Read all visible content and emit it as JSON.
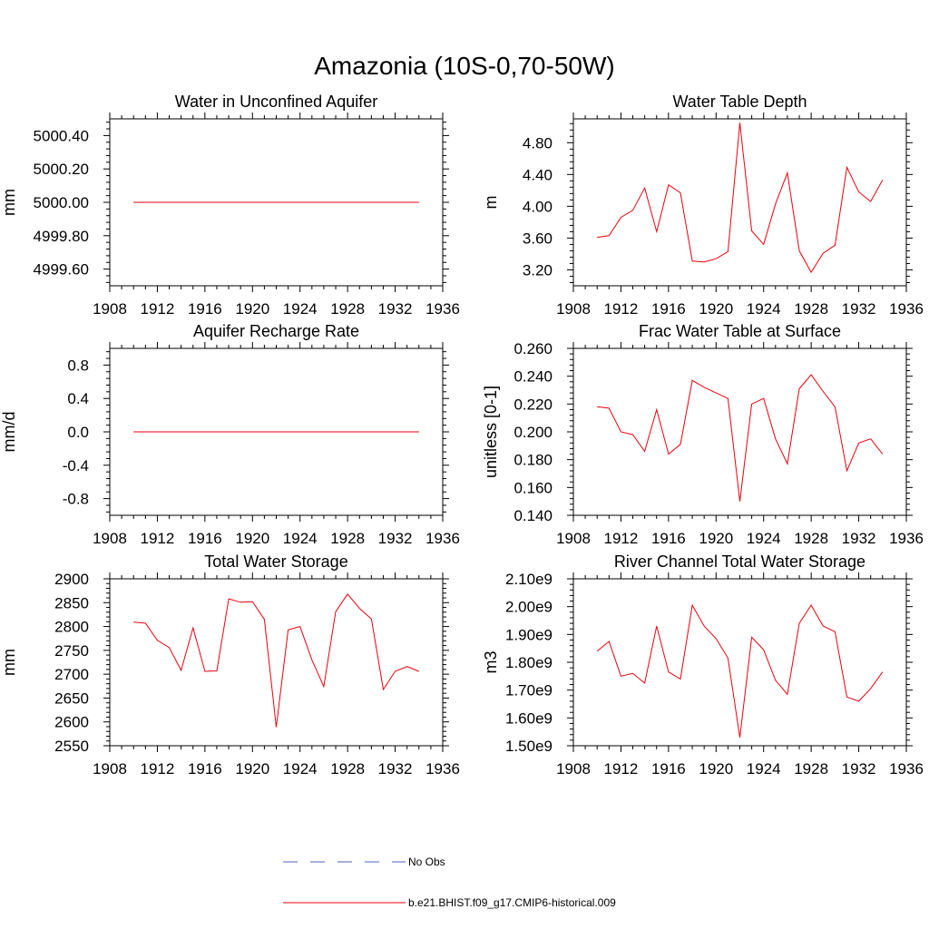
{
  "figure": {
    "title": "Amazonia (10S-0,70-50W)"
  },
  "legend": {
    "entries": [
      {
        "label": "No Obs",
        "style": "dashed",
        "color": "#5060b8"
      },
      {
        "label": "b.e21.BHIST.f09_g17.CMIP6-historical.009",
        "style": "solid",
        "color": "#e8000b"
      }
    ]
  },
  "colors": {
    "series": "#e8000b",
    "axis": "#000000"
  },
  "chart_data": [
    {
      "type": "line",
      "title": "Water in Unconfined Aquifer",
      "ylabel": "mm",
      "xlim": [
        1908,
        1936
      ],
      "ylim": [
        4999.5,
        5000.5
      ],
      "xticks": [
        1908,
        1912,
        1916,
        1920,
        1924,
        1928,
        1932,
        1936
      ],
      "yticks": [
        4999.6,
        4999.8,
        5000.0,
        5000.2,
        5000.4
      ],
      "ytick_labels": [
        "4999.60",
        "4999.80",
        "5000.00",
        "5000.20",
        "5000.40"
      ],
      "x": [
        1910,
        1911,
        1912,
        1913,
        1914,
        1915,
        1916,
        1917,
        1918,
        1919,
        1920,
        1921,
        1922,
        1923,
        1924,
        1925,
        1926,
        1927,
        1928,
        1929,
        1930,
        1931,
        1932,
        1933,
        1934
      ],
      "series": [
        {
          "name": "b.e21.BHIST.f09_g17.CMIP6-historical.009",
          "values": [
            5000,
            5000,
            5000,
            5000,
            5000,
            5000,
            5000,
            5000,
            5000,
            5000,
            5000,
            5000,
            5000,
            5000,
            5000,
            5000,
            5000,
            5000,
            5000,
            5000,
            5000,
            5000,
            5000,
            5000,
            5000
          ]
        }
      ]
    },
    {
      "type": "line",
      "title": "Water Table Depth",
      "ylabel": "m",
      "xlim": [
        1908,
        1936
      ],
      "ylim": [
        3.0,
        5.1
      ],
      "xticks": [
        1908,
        1912,
        1916,
        1920,
        1924,
        1928,
        1932,
        1936
      ],
      "yticks": [
        3.2,
        3.6,
        4.0,
        4.4,
        4.8
      ],
      "ytick_labels": [
        "3.20",
        "3.60",
        "4.00",
        "4.40",
        "4.80"
      ],
      "x": [
        1910,
        1911,
        1912,
        1913,
        1914,
        1915,
        1916,
        1917,
        1918,
        1919,
        1920,
        1921,
        1922,
        1923,
        1924,
        1925,
        1926,
        1927,
        1928,
        1929,
        1930,
        1931,
        1932,
        1933,
        1934
      ],
      "series": [
        {
          "name": "b.e21.BHIST.f09_g17.CMIP6-historical.009",
          "values": [
            3.61,
            3.63,
            3.86,
            3.95,
            4.23,
            3.68,
            4.27,
            4.17,
            3.31,
            3.3,
            3.34,
            3.43,
            5.05,
            3.69,
            3.52,
            4.03,
            4.42,
            3.44,
            3.17,
            3.41,
            3.51,
            4.49,
            4.18,
            4.06,
            4.33
          ]
        }
      ]
    },
    {
      "type": "line",
      "title": "Aquifer Recharge Rate",
      "ylabel": "mm/d",
      "xlim": [
        1908,
        1936
      ],
      "ylim": [
        -1.0,
        1.0
      ],
      "xticks": [
        1908,
        1912,
        1916,
        1920,
        1924,
        1928,
        1932,
        1936
      ],
      "yticks": [
        -0.8,
        -0.4,
        0.0,
        0.4,
        0.8
      ],
      "ytick_labels": [
        "-0.8",
        "-0.4",
        "0.0",
        "0.4",
        "0.8"
      ],
      "x": [
        1910,
        1911,
        1912,
        1913,
        1914,
        1915,
        1916,
        1917,
        1918,
        1919,
        1920,
        1921,
        1922,
        1923,
        1924,
        1925,
        1926,
        1927,
        1928,
        1929,
        1930,
        1931,
        1932,
        1933,
        1934
      ],
      "series": [
        {
          "name": "b.e21.BHIST.f09_g17.CMIP6-historical.009",
          "values": [
            0,
            0,
            0,
            0,
            0,
            0,
            0,
            0,
            0,
            0,
            0,
            0,
            0,
            0,
            0,
            0,
            0,
            0,
            0,
            0,
            0,
            0,
            0,
            0,
            0
          ]
        }
      ]
    },
    {
      "type": "line",
      "title": "Frac Water Table at Surface",
      "ylabel": "unitless [0-1]",
      "xlim": [
        1908,
        1936
      ],
      "ylim": [
        0.14,
        0.26
      ],
      "xticks": [
        1908,
        1912,
        1916,
        1920,
        1924,
        1928,
        1932,
        1936
      ],
      "yticks": [
        0.14,
        0.16,
        0.18,
        0.2,
        0.22,
        0.24,
        0.26
      ],
      "ytick_labels": [
        "0.140",
        "0.160",
        "0.180",
        "0.200",
        "0.220",
        "0.240",
        "0.260"
      ],
      "x": [
        1910,
        1911,
        1912,
        1913,
        1914,
        1915,
        1916,
        1917,
        1918,
        1919,
        1920,
        1921,
        1922,
        1923,
        1924,
        1925,
        1926,
        1927,
        1928,
        1929,
        1930,
        1931,
        1932,
        1933,
        1934
      ],
      "series": [
        {
          "name": "b.e21.BHIST.f09_g17.CMIP6-historical.009",
          "values": [
            0.218,
            0.217,
            0.2,
            0.198,
            0.186,
            0.216,
            0.184,
            0.191,
            0.237,
            0.232,
            0.228,
            0.224,
            0.15,
            0.22,
            0.224,
            0.195,
            0.177,
            0.231,
            0.241,
            0.229,
            0.218,
            0.172,
            0.192,
            0.195,
            0.184
          ]
        }
      ]
    },
    {
      "type": "line",
      "title": "Total Water Storage",
      "ylabel": "mm",
      "xlim": [
        1908,
        1936
      ],
      "ylim": [
        2550,
        2900
      ],
      "xticks": [
        1908,
        1912,
        1916,
        1920,
        1924,
        1928,
        1932,
        1936
      ],
      "yticks": [
        2550,
        2600,
        2650,
        2700,
        2750,
        2800,
        2850,
        2900
      ],
      "ytick_labels": [
        "2550",
        "2600",
        "2650",
        "2700",
        "2750",
        "2800",
        "2850",
        "2900"
      ],
      "x": [
        1910,
        1911,
        1912,
        1913,
        1914,
        1915,
        1916,
        1917,
        1918,
        1919,
        1920,
        1921,
        1922,
        1923,
        1924,
        1925,
        1926,
        1927,
        1928,
        1929,
        1930,
        1931,
        1932,
        1933,
        1934
      ],
      "series": [
        {
          "name": "b.e21.BHIST.f09_g17.CMIP6-historical.009",
          "values": [
            2809,
            2807,
            2771,
            2756,
            2708,
            2797,
            2706,
            2707,
            2858,
            2851,
            2852,
            2815,
            2589,
            2793,
            2800,
            2730,
            2674,
            2831,
            2868,
            2838,
            2816,
            2668,
            2706,
            2716,
            2706
          ]
        }
      ]
    },
    {
      "type": "line",
      "title": "River Channel Total Water Storage",
      "ylabel": "m3",
      "xlim": [
        1908,
        1936
      ],
      "ylim": [
        1500000000.0,
        2100000000.0
      ],
      "xticks": [
        1908,
        1912,
        1916,
        1920,
        1924,
        1928,
        1932,
        1936
      ],
      "yticks": [
        1500000000.0,
        1600000000.0,
        1700000000.0,
        1800000000.0,
        1900000000.0,
        2000000000.0,
        2100000000.0
      ],
      "ytick_labels": [
        "1.50e9",
        "1.60e9",
        "1.70e9",
        "1.80e9",
        "1.90e9",
        "2.00e9",
        "2.10e9"
      ],
      "x": [
        1910,
        1911,
        1912,
        1913,
        1914,
        1915,
        1916,
        1917,
        1918,
        1919,
        1920,
        1921,
        1922,
        1923,
        1924,
        1925,
        1926,
        1927,
        1928,
        1929,
        1930,
        1931,
        1932,
        1933,
        1934
      ],
      "series": [
        {
          "name": "b.e21.BHIST.f09_g17.CMIP6-historical.009",
          "values": [
            1840000000.0,
            1875000000.0,
            1750000000.0,
            1760000000.0,
            1725000000.0,
            1930000000.0,
            1765000000.0,
            1740000000.0,
            2005000000.0,
            1930000000.0,
            1885000000.0,
            1815000000.0,
            1530000000.0,
            1890000000.0,
            1845000000.0,
            1735000000.0,
            1685000000.0,
            1940000000.0,
            2005000000.0,
            1930000000.0,
            1910000000.0,
            1675000000.0,
            1660000000.0,
            1705000000.0,
            1765000000.0
          ]
        }
      ]
    }
  ]
}
